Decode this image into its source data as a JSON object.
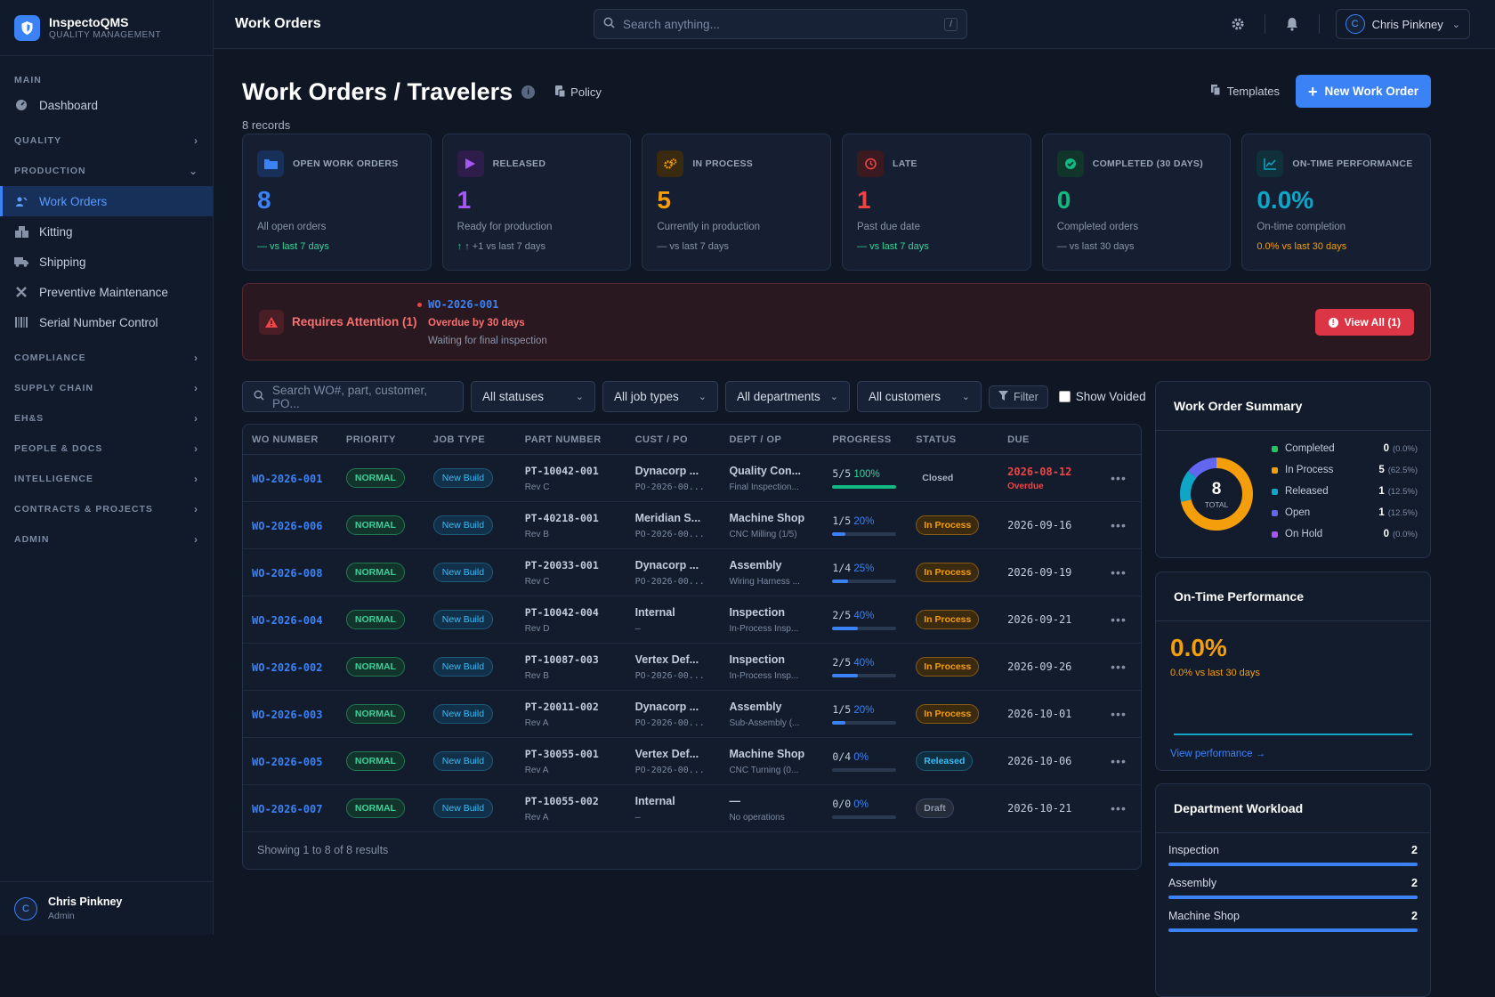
{
  "brand": {
    "name": "InspectoQMS",
    "sub": "QUALITY MANAGEMENT"
  },
  "sidebar": {
    "main_label": "MAIN",
    "dashboard": "Dashboard",
    "sections": {
      "quality": "QUALITY",
      "production": "PRODUCTION",
      "compliance": "COMPLIANCE",
      "supply_chain": "SUPPLY CHAIN",
      "ehs": "EH&S",
      "people_docs": "PEOPLE & DOCS",
      "intelligence": "INTELLIGENCE",
      "contracts": "CONTRACTS & PROJECTS",
      "admin": "ADMIN"
    },
    "production_items": [
      "Work Orders",
      "Kitting",
      "Shipping",
      "Preventive Maintenance",
      "Serial Number Control"
    ],
    "user": {
      "initial": "C",
      "name": "Chris Pinkney",
      "role": "Admin"
    }
  },
  "topbar": {
    "title": "Work Orders",
    "search_placeholder": "Search anything...",
    "shortcut": "/",
    "user_initial": "C",
    "user_name": "Chris Pinkney"
  },
  "page": {
    "title": "Work Orders / Travelers",
    "policy": "Policy",
    "records": "8 records",
    "templates": "Templates",
    "new_button": "New Work Order"
  },
  "kpis": [
    {
      "label": "OPEN WORK ORDERS",
      "value": "8",
      "desc": "All open orders",
      "trend": "— vs last 7 days",
      "color": "#3b82f6",
      "trend_color": "#34d399"
    },
    {
      "label": "RELEASED",
      "value": "1",
      "desc": "Ready for production",
      "trend": "↑ +1 vs last 7 days",
      "color": "#a855f7",
      "trend_color": "#8894a8"
    },
    {
      "label": "IN PROCESS",
      "value": "5",
      "desc": "Currently in production",
      "trend": "— vs last 7 days",
      "color": "#f59e0b",
      "trend_color": "#8894a8"
    },
    {
      "label": "LATE",
      "value": "1",
      "desc": "Past due date",
      "trend": "— vs last 7 days",
      "color": "#ef4444",
      "trend_color": "#34d399"
    },
    {
      "label": "COMPLETED (30 DAYS)",
      "value": "0",
      "desc": "Completed orders",
      "trend": "— vs last 30 days",
      "color": "#10b981",
      "trend_color": "#8894a8"
    },
    {
      "label": "ON-TIME PERFORMANCE",
      "value": "0.0%",
      "desc": "On-time completion",
      "trend": "0.0% vs last 30 days",
      "color": "#0ea5c6",
      "trend_color": "#f59e0b"
    }
  ],
  "attention": {
    "title": "Requires Attention (1)",
    "wo": "WO-2026-001",
    "overdue": "Overdue by 30 days",
    "note": "Waiting for final inspection",
    "button": "View All (1)"
  },
  "filters": {
    "search_placeholder": "Search WO#, part, customer, PO...",
    "status": "All statuses",
    "job_type": "All job types",
    "department": "All departments",
    "customer": "All customers",
    "filter_button": "Filter",
    "show_voided": "Show Voided"
  },
  "table": {
    "headers": [
      "WO NUMBER",
      "PRIORITY",
      "JOB TYPE",
      "PART NUMBER",
      "CUST / PO",
      "DEPT / OP",
      "PROGRESS",
      "STATUS",
      "DUE"
    ],
    "rows": [
      {
        "wo": "WO-2026-001",
        "priority": "NORMAL",
        "job": "New Build",
        "part": "PT-10042-001",
        "rev": "Rev C",
        "cust": "Dynacorp ...",
        "po": "PO-2026-00...",
        "dept": "Quality Con...",
        "op": "Final Inspection...",
        "prog": "5/5",
        "pct": "100%",
        "frac": 1.0,
        "status": "Closed",
        "status_kind": "cl",
        "due": "2026-08-12",
        "due_note": "Overdue"
      },
      {
        "wo": "WO-2026-006",
        "priority": "NORMAL",
        "job": "New Build",
        "part": "PT-40218-001",
        "rev": "Rev B",
        "cust": "Meridian S...",
        "po": "PO-2026-00...",
        "dept": "Machine Shop",
        "op": "CNC Milling (1/5)",
        "prog": "1/5",
        "pct": "20%",
        "frac": 0.2,
        "status": "In Process",
        "status_kind": "in",
        "due": "2026-09-16",
        "due_note": ""
      },
      {
        "wo": "WO-2026-008",
        "priority": "NORMAL",
        "job": "New Build",
        "part": "PT-20033-001",
        "rev": "Rev C",
        "cust": "Dynacorp ...",
        "po": "PO-2026-00...",
        "dept": "Assembly",
        "op": "Wiring Harness ...",
        "prog": "1/4",
        "pct": "25%",
        "frac": 0.25,
        "status": "In Process",
        "status_kind": "in",
        "due": "2026-09-19",
        "due_note": ""
      },
      {
        "wo": "WO-2026-004",
        "priority": "NORMAL",
        "job": "New Build",
        "part": "PT-10042-004",
        "rev": "Rev D",
        "cust": "Internal",
        "po": "—",
        "dept": "Inspection",
        "op": "In-Process Insp...",
        "prog": "2/5",
        "pct": "40%",
        "frac": 0.4,
        "status": "In Process",
        "status_kind": "in",
        "due": "2026-09-21",
        "due_note": ""
      },
      {
        "wo": "WO-2026-002",
        "priority": "NORMAL",
        "job": "New Build",
        "part": "PT-10087-003",
        "rev": "Rev B",
        "cust": "Vertex Def...",
        "po": "PO-2026-00...",
        "dept": "Inspection",
        "op": "In-Process Insp...",
        "prog": "2/5",
        "pct": "40%",
        "frac": 0.4,
        "status": "In Process",
        "status_kind": "in",
        "due": "2026-09-26",
        "due_note": ""
      },
      {
        "wo": "WO-2026-003",
        "priority": "NORMAL",
        "job": "New Build",
        "part": "PT-20011-002",
        "rev": "Rev A",
        "cust": "Dynacorp ...",
        "po": "PO-2026-00...",
        "dept": "Assembly",
        "op": "Sub-Assembly (...",
        "prog": "1/5",
        "pct": "20%",
        "frac": 0.2,
        "status": "In Process",
        "status_kind": "in",
        "due": "2026-10-01",
        "due_note": ""
      },
      {
        "wo": "WO-2026-005",
        "priority": "NORMAL",
        "job": "New Build",
        "part": "PT-30055-001",
        "rev": "Rev A",
        "cust": "Vertex Def...",
        "po": "PO-2026-00...",
        "dept": "Machine Shop",
        "op": "CNC Turning (0...",
        "prog": "0/4",
        "pct": "0%",
        "frac": 0.0,
        "status": "Released",
        "status_kind": "rel",
        "due": "2026-10-06",
        "due_note": ""
      },
      {
        "wo": "WO-2026-007",
        "priority": "NORMAL",
        "job": "New Build",
        "part": "PT-10055-002",
        "rev": "Rev A",
        "cust": "Internal",
        "po": "—",
        "dept": "—",
        "op": "No operations",
        "prog": "0/0",
        "pct": "0%",
        "frac": 0.0,
        "status": "Draft",
        "status_kind": "dr",
        "due": "2026-10-21",
        "due_note": ""
      }
    ],
    "footer": "Showing 1 to 8 of 8 results"
  },
  "summary": {
    "title": "Work Order Summary",
    "total": "8",
    "total_label": "TOTAL",
    "items": [
      {
        "label": "Completed",
        "count": "0",
        "pct": "(0.0%)",
        "value": 0,
        "color": "#22c55e"
      },
      {
        "label": "In Process",
        "count": "5",
        "pct": "(62.5%)",
        "value": 5,
        "color": "#f59e0b"
      },
      {
        "label": "Released",
        "count": "1",
        "pct": "(12.5%)",
        "value": 1,
        "color": "#0ea5c6"
      },
      {
        "label": "Open",
        "count": "1",
        "pct": "(12.5%)",
        "value": 1,
        "color": "#6366f1"
      },
      {
        "label": "On Hold",
        "count": "0",
        "pct": "(0.0%)",
        "value": 0,
        "color": "#a855f7"
      }
    ]
  },
  "ontime": {
    "title": "On-Time Performance",
    "value": "0.0%",
    "sub": "0.0% vs last 30 days",
    "link": "View performance →"
  },
  "workload": {
    "title": "Department Workload",
    "items": [
      {
        "label": "Inspection",
        "count": "2"
      },
      {
        "label": "Assembly",
        "count": "2"
      },
      {
        "label": "Machine Shop",
        "count": "2"
      }
    ]
  }
}
